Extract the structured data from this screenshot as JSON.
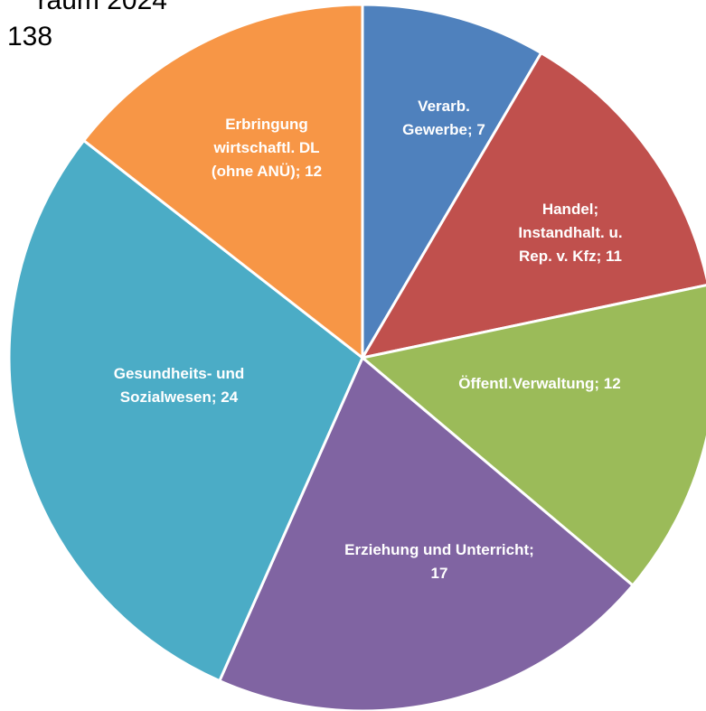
{
  "chart_data": {
    "type": "pie",
    "title": "raum 2024",
    "subtitle": "138",
    "labels": [
      [
        "Verarb.",
        "Gewerbe; 7"
      ],
      [
        "Handel;",
        "Instandhalt. u.",
        "Rep. v. Kfz; 11"
      ],
      [
        "Öffentl.Verwaltung; 12"
      ],
      [
        "Erziehung und Unterricht;",
        "17"
      ],
      [
        "Gesundheits- und",
        "Sozialwesen; 24"
      ],
      [
        "Erbringung",
        "wirtschaftl. DL",
        "(ohne ANÜ); 12"
      ]
    ],
    "values": [
      7,
      11,
      12,
      17,
      24,
      12
    ],
    "colors": [
      "#4f81bd",
      "#c0504d",
      "#9bbb59",
      "#8064a2",
      "#4bacc6",
      "#f79646"
    ]
  }
}
